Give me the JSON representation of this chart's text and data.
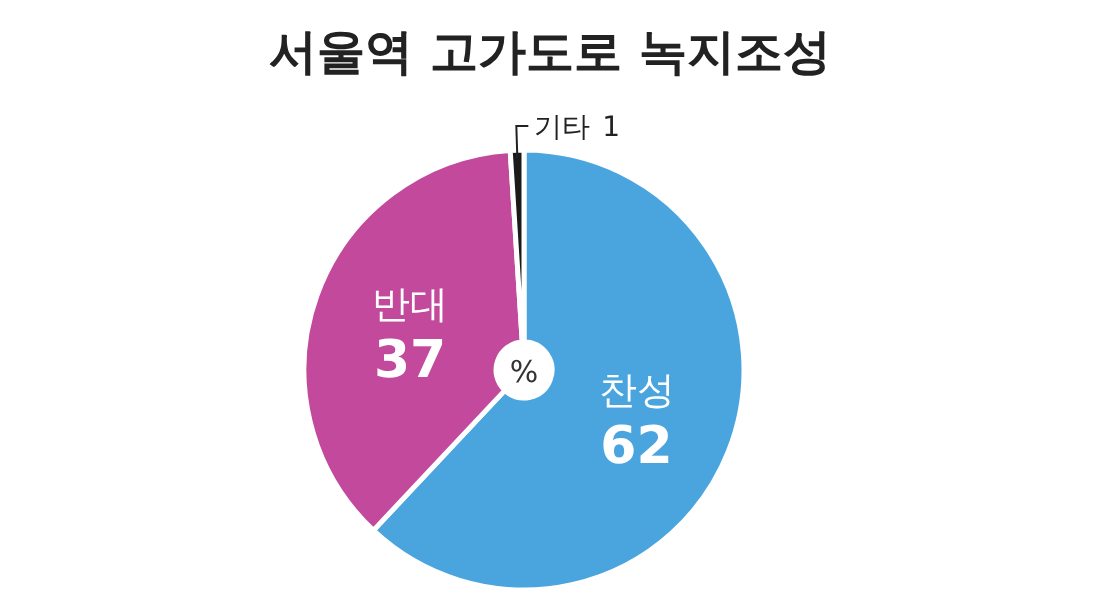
{
  "chart_data": {
    "type": "donut",
    "title": "서울역 고가도로 녹지조성",
    "categories": [
      "찬성",
      "반대",
      "기타"
    ],
    "values": [
      62,
      37,
      1
    ],
    "colors": [
      "#4aa5de",
      "#c2499c",
      "#1a1a1a"
    ],
    "data_labels": true,
    "annotations": [
      "%"
    ]
  }
}
